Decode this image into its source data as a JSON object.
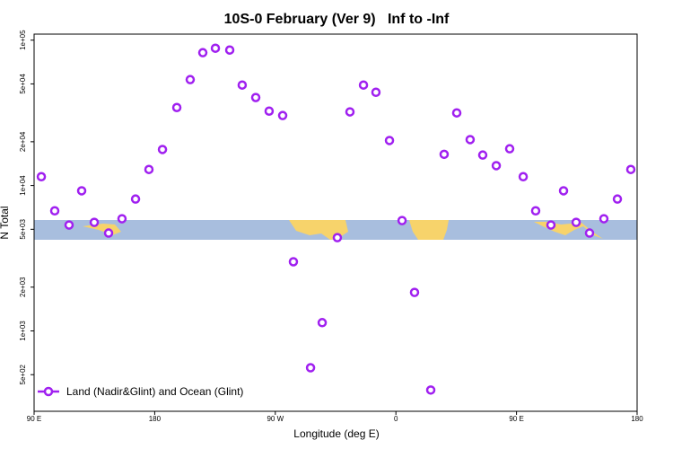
{
  "chart_data": {
    "type": "scatter",
    "title": "10S-0 February (Ver 9)   Inf to -Inf",
    "x_label": "Longitude (deg E)",
    "y_label": "N Total",
    "log_y": true,
    "xlim": [
      90,
      540
    ],
    "ylim": [
      280,
      110000
    ],
    "xticks": [
      {
        "value": 90,
        "label": "90 E"
      },
      180,
      {
        "value": 270,
        "label": "90 W"
      },
      {
        "value": 360,
        "label": "0"
      },
      {
        "value": 450,
        "label": "90 E"
      },
      {
        "value": 540,
        "label": "180"
      }
    ],
    "yticks": [
      {
        "value": 500,
        "label": "5e+02"
      },
      {
        "value": 1000,
        "label": "1e+03"
      },
      {
        "value": 2000,
        "label": "2e+03"
      },
      {
        "value": 5000,
        "label": "5e+03"
      },
      {
        "value": 10000,
        "label": "1e+04"
      },
      {
        "value": 20000,
        "label": "2e+04"
      },
      {
        "value": 50000,
        "label": "5e+04"
      },
      {
        "value": 100000,
        "label": "1e+05"
      }
    ],
    "legend_position": "bottom-left",
    "series": [
      {
        "name": "Land (Nadir&Glint) and Ocean (Glint)",
        "color": "#a020f0",
        "x": [
          95.4,
          105.4,
          116.1,
          125.5,
          134.9,
          145.6,
          155.6,
          165.7,
          175.7,
          185.8,
          196.5,
          206.5,
          215.9,
          225.3,
          236.0,
          245.3,
          255.4,
          265.4,
          275.5,
          283.5,
          296.3,
          305.0,
          316.3,
          325.7,
          335.8,
          345.1,
          355.2,
          364.6,
          373.9,
          386.0,
          396.0,
          405.4,
          415.4,
          424.8,
          434.9,
          444.9,
          455.0,
          464.3,
          475.7,
          485.1,
          494.5,
          504.5,
          515.2,
          525.3,
          535.3
        ],
        "values": [
          11500,
          6700,
          5350,
          9200,
          5580,
          4710,
          5910,
          8070,
          12900,
          17700,
          34400,
          53500,
          82000,
          88000,
          85500,
          49100,
          40300,
          32500,
          30300,
          2990,
          558,
          1140,
          4380,
          32100,
          49100,
          43800,
          20400,
          5740,
          1840,
          392,
          16400,
          31600,
          20700,
          16200,
          13700,
          17900,
          11500,
          6700,
          5350,
          9200,
          5580,
          4710,
          5910,
          8070,
          12900
        ]
      }
    ]
  }
}
